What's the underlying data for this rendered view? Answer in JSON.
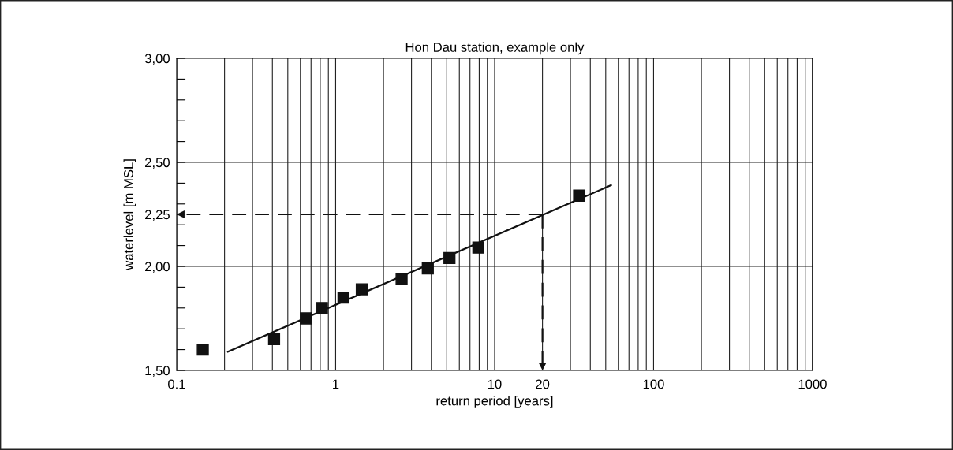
{
  "chart_data": {
    "type": "scatter",
    "title": "Hon Dau station, example only",
    "xlabel": "return period [years]",
    "ylabel": "waterlevel [m MSL]",
    "log": "x",
    "xlim": [
      0.1,
      1000
    ],
    "ylim": [
      1.5,
      3.0
    ],
    "xticks": [
      {
        "value": 0.1,
        "label": "0.1"
      },
      {
        "value": 0.2,
        "label": null
      },
      {
        "value": 0.3,
        "label": null
      },
      {
        "value": 0.4,
        "label": null
      },
      {
        "value": 0.5,
        "label": null
      },
      {
        "value": 0.6,
        "label": null
      },
      {
        "value": 0.7,
        "label": null
      },
      {
        "value": 0.8,
        "label": null
      },
      {
        "value": 0.9,
        "label": null
      },
      1,
      {
        "value": 2,
        "label": null
      },
      {
        "value": 3,
        "label": null
      },
      {
        "value": 4,
        "label": null
      },
      {
        "value": 5,
        "label": null
      },
      {
        "value": 6,
        "label": null
      },
      {
        "value": 7,
        "label": null
      },
      {
        "value": 8,
        "label": null
      },
      {
        "value": 9,
        "label": null
      },
      10,
      20,
      {
        "value": 30,
        "label": null
      },
      {
        "value": 40,
        "label": null
      },
      {
        "value": 50,
        "label": null
      },
      {
        "value": 60,
        "label": null
      },
      {
        "value": 70,
        "label": null
      },
      {
        "value": 80,
        "label": null
      },
      {
        "value": 90,
        "label": null
      },
      100,
      {
        "value": 200,
        "label": null
      },
      {
        "value": 300,
        "label": null
      },
      {
        "value": 400,
        "label": null
      },
      {
        "value": 500,
        "label": null
      },
      {
        "value": 600,
        "label": null
      },
      {
        "value": 700,
        "label": null
      },
      {
        "value": 800,
        "label": null
      },
      {
        "value": 900,
        "label": null
      },
      1000
    ],
    "yticks": [
      {
        "value": 1.5,
        "label": "1,50"
      },
      {
        "value": 1.6,
        "label": null
      },
      {
        "value": 1.7,
        "label": null
      },
      {
        "value": 1.8,
        "label": null
      },
      {
        "value": 1.9,
        "label": null
      },
      {
        "value": 2.0,
        "label": "2,00"
      },
      {
        "value": 2.1,
        "label": null
      },
      {
        "value": 2.2,
        "label": null
      },
      {
        "value": 2.25,
        "label": "2,25"
      },
      {
        "value": 2.3,
        "label": null
      },
      {
        "value": 2.4,
        "label": null
      },
      {
        "value": 2.5,
        "label": "2,50"
      },
      {
        "value": 2.6,
        "label": null
      },
      {
        "value": 2.7,
        "label": null
      },
      {
        "value": 2.8,
        "label": null
      },
      {
        "value": 2.9,
        "label": null
      },
      {
        "value": 3.0,
        "label": "3,00"
      }
    ],
    "grid": "x",
    "marker": "square",
    "ref_lines": [
      {
        "axis": "y",
        "value": 2.0,
        "color": "#222222"
      },
      {
        "axis": "y",
        "value": 2.5,
        "color": "#222222"
      }
    ],
    "series": [
      {
        "color": "#111111",
        "x": [
          0.146,
          0.41,
          0.65,
          0.82,
          1.12,
          1.46,
          2.6,
          3.8,
          5.2,
          7.9,
          34
        ],
        "values": [
          1.6,
          1.65,
          1.75,
          1.8,
          1.85,
          1.89,
          1.94,
          1.99,
          2.04,
          2.09,
          2.34
        ]
      },
      {
        "type": "line",
        "color": "#111111",
        "marker": "none",
        "line_style": "solid",
        "x": [
          0.21,
          54
        ],
        "values": [
          1.59,
          2.39
        ]
      },
      {
        "type": "line",
        "color": "#111111",
        "marker": "none",
        "line_style": "dashed",
        "x": [
          20,
          0.1
        ],
        "values": [
          2.25,
          2.25
        ]
      },
      {
        "type": "line",
        "color": "#111111",
        "marker": "none",
        "line_style": "dashed",
        "x": [
          20,
          20
        ],
        "values": [
          2.25,
          1.5
        ]
      }
    ]
  }
}
